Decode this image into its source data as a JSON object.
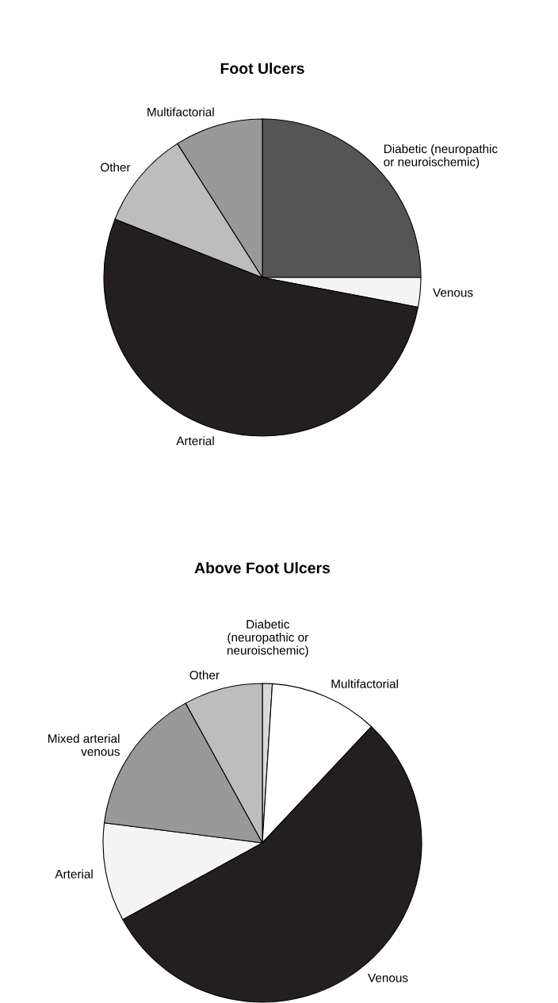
{
  "chart_data": [
    {
      "type": "pie",
      "title": "Foot Ulcers",
      "categories": [
        "Diabetic (neuropathic\nor neuroischemic)",
        "Venous",
        "Arterial",
        "Other",
        "Multifactorial"
      ],
      "values": [
        25,
        3,
        53,
        10,
        9
      ],
      "colors": [
        "#555555",
        "#f4f4f4",
        "#231f20",
        "#bdbdbd",
        "#999999"
      ]
    },
    {
      "type": "pie",
      "title": "Above Foot Ulcers",
      "categories": [
        "Diabetic\n(neuropathic or\nneuroischemic)",
        "Multifactorial",
        "Venous",
        "Arterial",
        "Mixed arterial\nvenous",
        "Other"
      ],
      "values": [
        1,
        11,
        55,
        10,
        15,
        8
      ],
      "colors": [
        "#d9d9d9",
        "#ffffff",
        "#231f20",
        "#f4f4f4",
        "#999999",
        "#bdbdbd"
      ]
    }
  ]
}
